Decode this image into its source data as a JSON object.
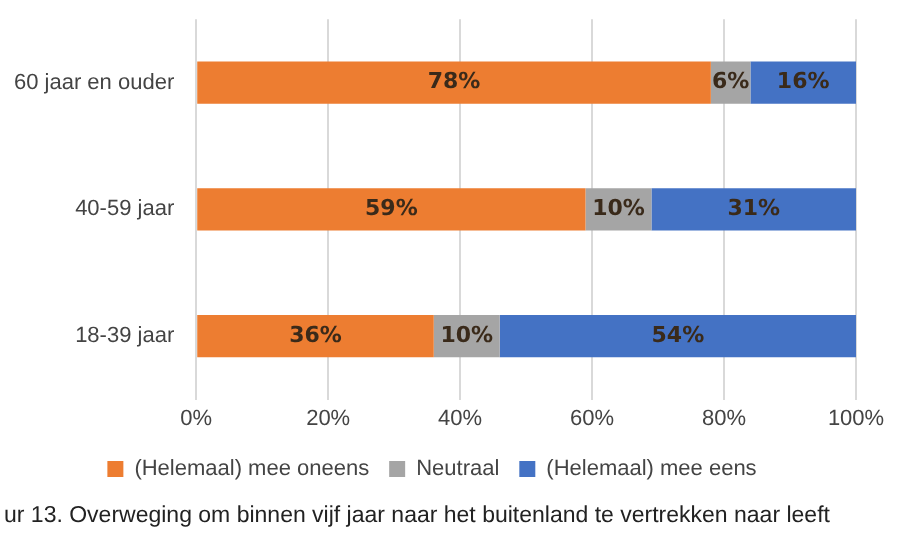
{
  "chart_data": {
    "type": "bar",
    "orientation": "horizontal",
    "stacked": true,
    "categories": [
      "60 jaar en ouder",
      "40-59 jaar",
      "18-39 jaar"
    ],
    "series": [
      {
        "name": "(Helemaal) mee oneens",
        "color": "#ed7d31",
        "values": [
          78,
          59,
          36
        ],
        "value_labels": [
          "78%",
          "59%",
          "36%"
        ]
      },
      {
        "name": "Neutraal",
        "color": "#a5a5a5",
        "values": [
          6,
          10,
          10
        ],
        "value_labels": [
          "6%",
          "10%",
          "10%"
        ]
      },
      {
        "name": "(Helemaal) mee eens",
        "color": "#4472c4",
        "values": [
          16,
          31,
          54
        ],
        "value_labels": [
          "16%",
          "31%",
          "54%"
        ]
      }
    ],
    "xlim": [
      0,
      100
    ],
    "xticks": [
      {
        "value": 0,
        "label": "0%"
      },
      {
        "value": 20,
        "label": "20%"
      },
      {
        "value": 40,
        "label": "40%"
      },
      {
        "value": 60,
        "label": "60%"
      },
      {
        "value": 80,
        "label": "80%"
      },
      {
        "value": 100,
        "label": "100%"
      }
    ],
    "grid": "x",
    "legend": "bottom",
    "annotations": [
      "ur 13. Overweging om binnen vijf jaar naar het buitenland te vertrekken naar leeft"
    ]
  }
}
